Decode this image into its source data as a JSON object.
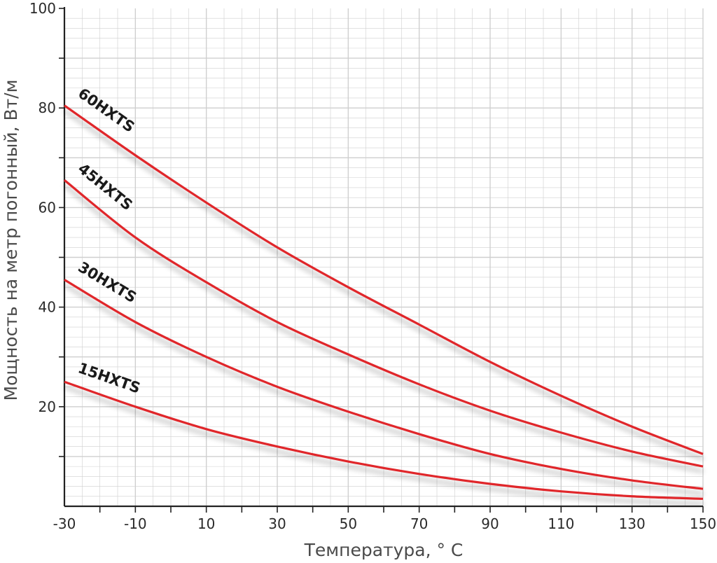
{
  "chart_data": {
    "type": "line",
    "xlabel": "Температура, °  С",
    "ylabel": "Мощность на метр погонный, Вт/м",
    "xlim": [
      -30,
      150
    ],
    "ylim": [
      0,
      100
    ],
    "x_ticks": [
      -30,
      -10,
      10,
      30,
      50,
      70,
      90,
      110,
      130,
      150
    ],
    "y_ticks": [
      20,
      40,
      60,
      80,
      100
    ],
    "grid": true,
    "line_color": "#e0262b",
    "grid_color": "#cfcfcf",
    "series": [
      {
        "name": "60HXTS",
        "x": [
          -30,
          -10,
          10,
          30,
          50,
          70,
          90,
          110,
          130,
          150
        ],
        "y": [
          80.5,
          70.5,
          61,
          52,
          44,
          36.5,
          29,
          22.2,
          16,
          10.5
        ]
      },
      {
        "name": "45HXTS",
        "x": [
          -30,
          -10,
          10,
          30,
          50,
          70,
          90,
          110,
          130,
          150
        ],
        "y": [
          65.5,
          54,
          45,
          37,
          30.5,
          24.5,
          19.2,
          14.8,
          11,
          8
        ]
      },
      {
        "name": "30HXTS",
        "x": [
          -30,
          -10,
          10,
          30,
          50,
          70,
          90,
          110,
          130,
          150
        ],
        "y": [
          45.5,
          37,
          30,
          24,
          19,
          14.5,
          10.5,
          7.5,
          5.2,
          3.5
        ]
      },
      {
        "name": "15HXTS",
        "x": [
          -30,
          -10,
          10,
          30,
          50,
          70,
          90,
          110,
          130,
          150
        ],
        "y": [
          25,
          20,
          15.5,
          12,
          9,
          6.5,
          4.5,
          3,
          2,
          1.5
        ]
      }
    ]
  }
}
